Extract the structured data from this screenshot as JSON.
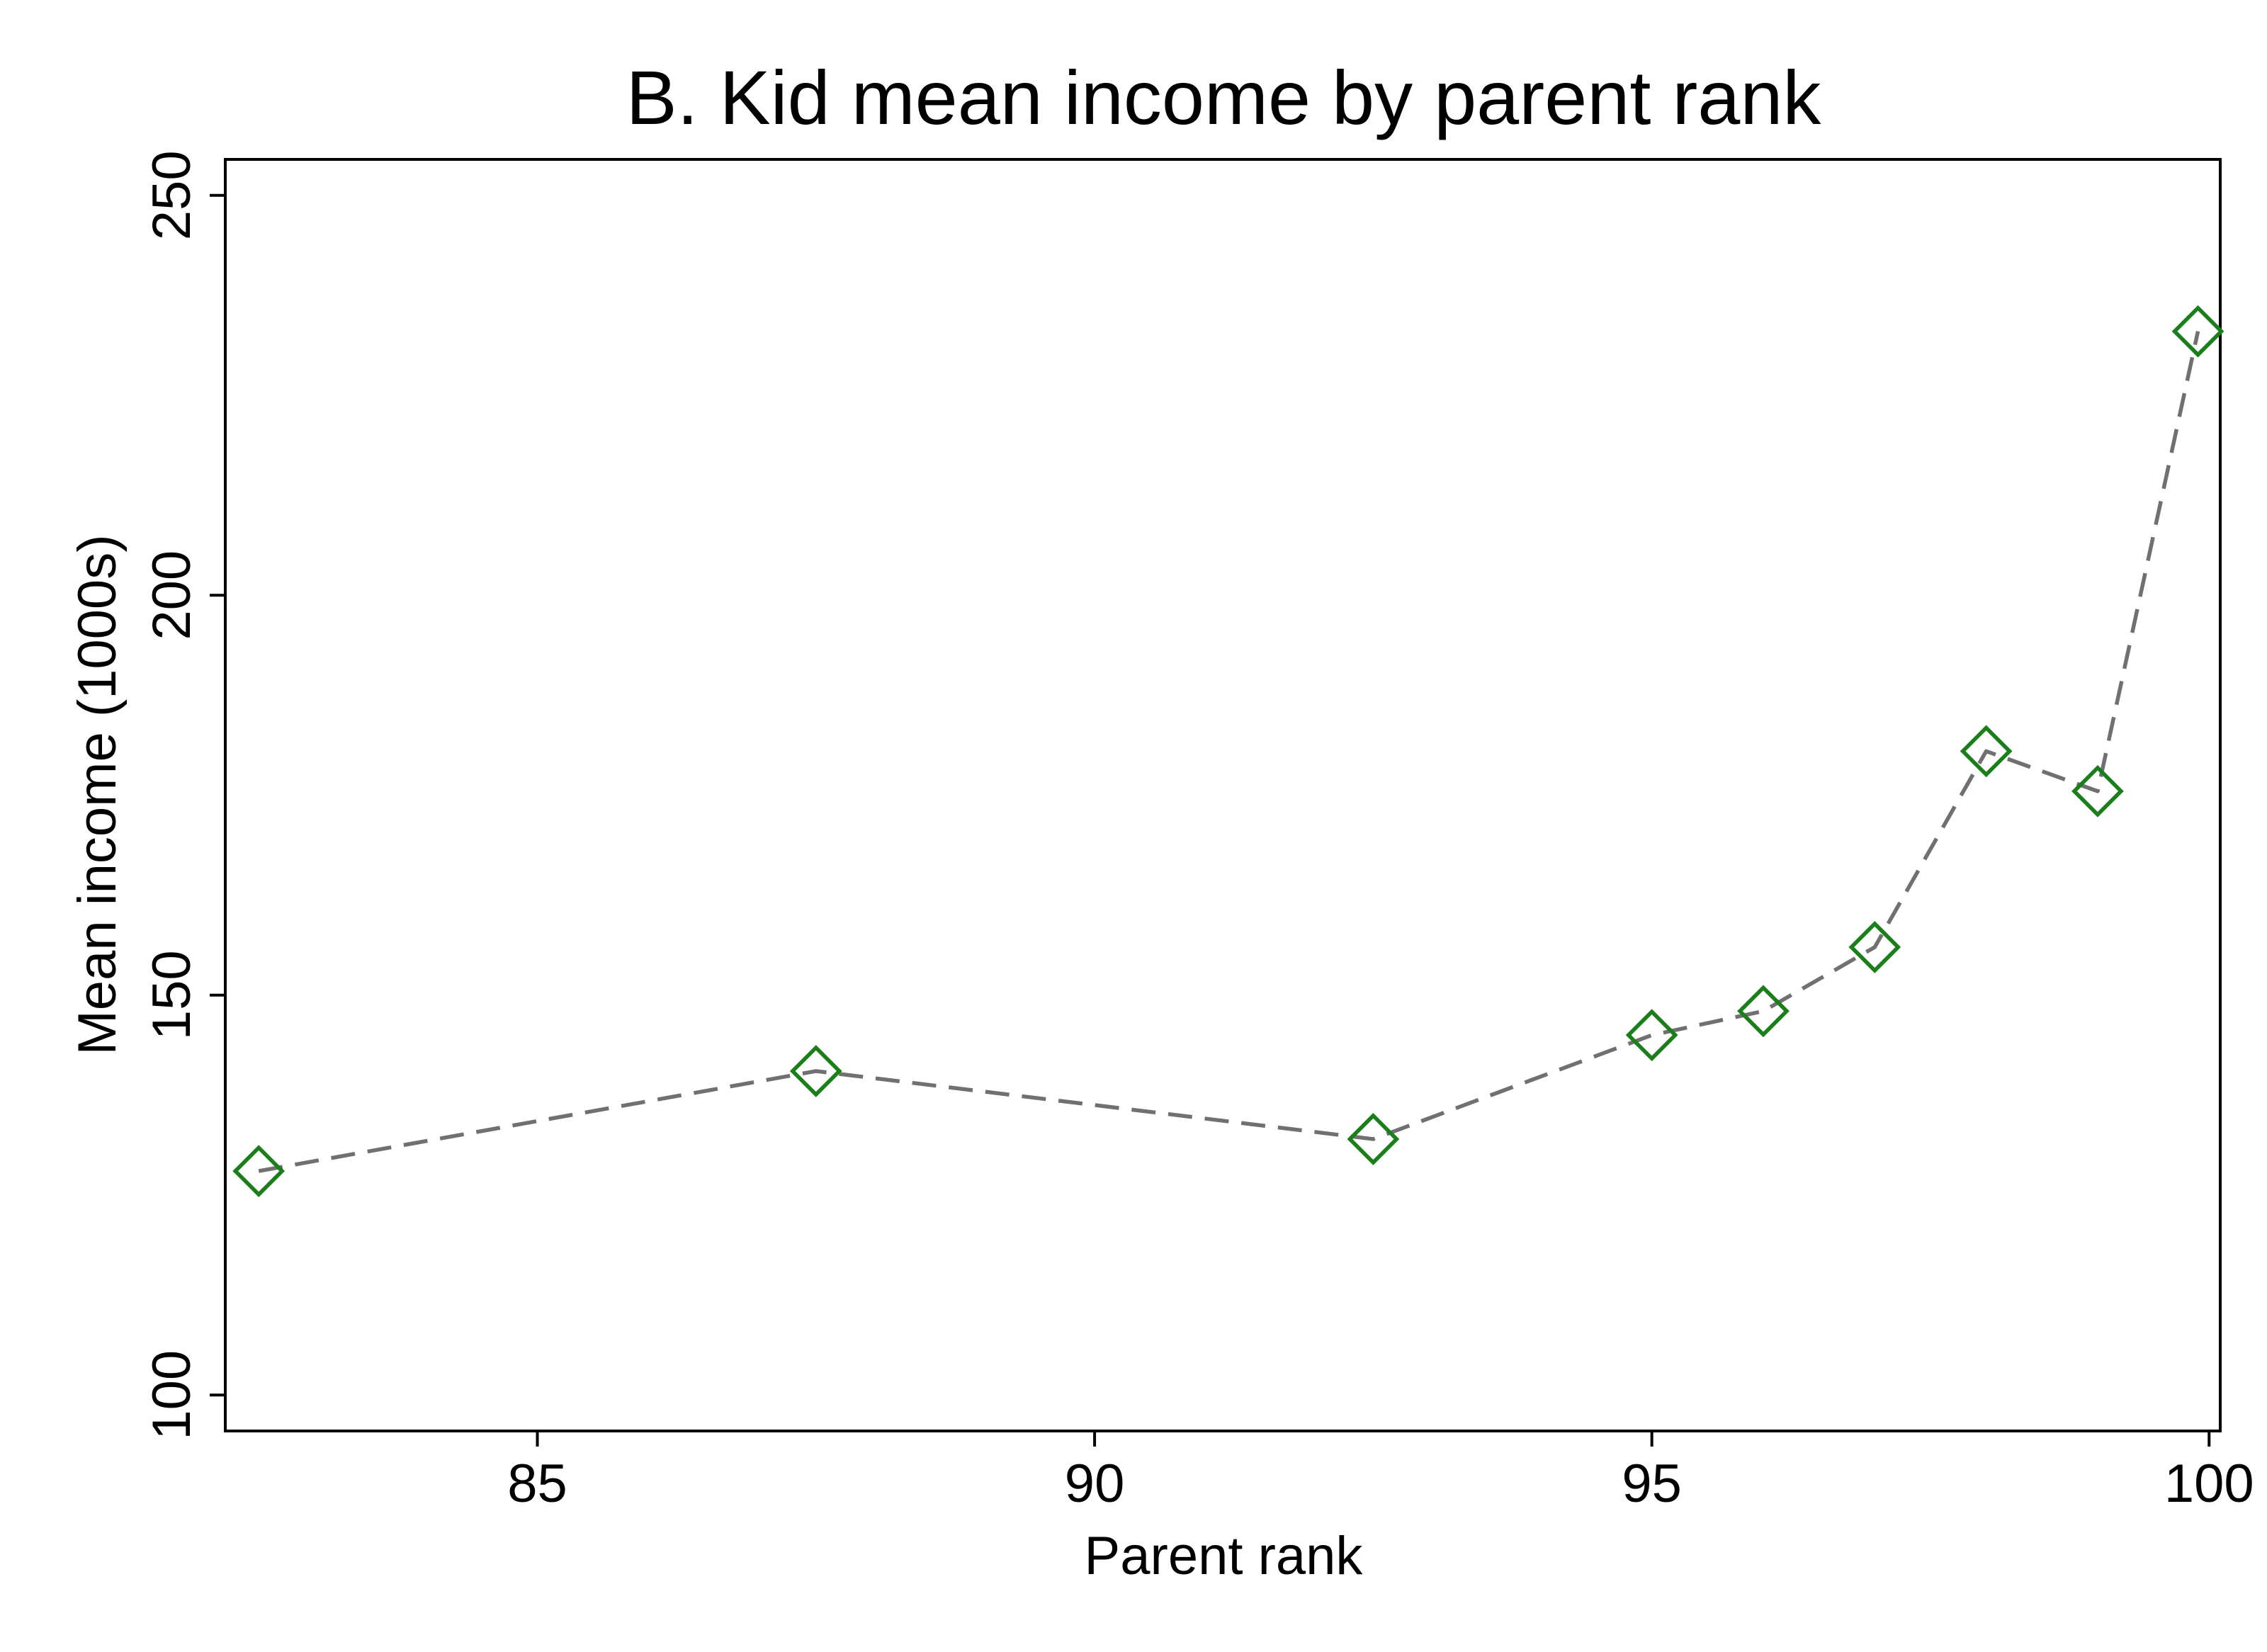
{
  "chart_data": {
    "type": "line",
    "title": "B. Kid mean income by parent rank",
    "xlabel": "Parent rank",
    "ylabel": "Mean income (1000s)",
    "xlim": [
      82.2,
      100.1
    ],
    "ylim": [
      95.5,
      254.5
    ],
    "xticks": [
      "85",
      "90",
      "95",
      "100"
    ],
    "yticks": [
      "100",
      "150",
      "200",
      "250"
    ],
    "x": [
      82.5,
      87.5,
      92.5,
      95,
      96,
      97,
      98,
      99,
      99.9
    ],
    "series": [
      {
        "values": [
          128,
          140.5,
          132,
          145,
          148,
          156,
          180.5,
          175.5,
          233
        ],
        "line_color": "#707070",
        "line_style": "dashed",
        "marker": "hollow-diamond",
        "marker_color": "#1a7f1a"
      }
    ],
    "grid": false,
    "legend": "none"
  }
}
